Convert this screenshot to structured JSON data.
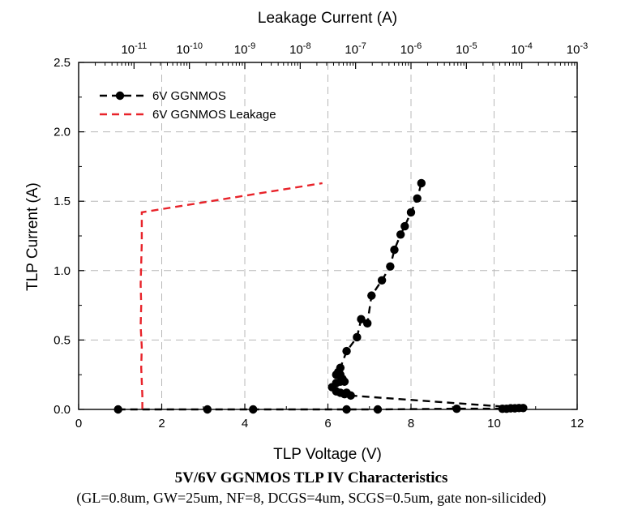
{
  "chart_data": {
    "type": "scatter",
    "title": "5V/6V GGNMOS TLP IV Characteristics",
    "subtitle": "(GL=0.8um, GW=25um, NF=8, DCGS=4um, SCGS=0.5um, gate non-silicided)",
    "xlabel": "TLP Voltage (V)",
    "ylabel": "TLP Current (A)",
    "top_xlabel": "Leakage Current (A)",
    "xlim": [
      0,
      12
    ],
    "ylim": [
      0,
      2.5
    ],
    "top_xlim_log10": [
      -12,
      -3
    ],
    "grid": true,
    "legend_position": "top-left",
    "x_ticks": [
      "0",
      "2",
      "4",
      "6",
      "8",
      "10",
      "12"
    ],
    "y_ticks": [
      "0.0",
      "0.5",
      "1.0",
      "1.5",
      "2.0",
      "2.5"
    ],
    "top_ticks": [
      {
        "base": "10",
        "exp": "-11"
      },
      {
        "base": "10",
        "exp": "-10"
      },
      {
        "base": "10",
        "exp": "-9"
      },
      {
        "base": "10",
        "exp": "-8"
      },
      {
        "base": "10",
        "exp": "-7"
      },
      {
        "base": "10",
        "exp": "-6"
      },
      {
        "base": "10",
        "exp": "-5"
      },
      {
        "base": "10",
        "exp": "-4"
      },
      {
        "base": "10",
        "exp": "-3"
      }
    ],
    "series": [
      {
        "name": "6V GGNMOS",
        "color": "#000000",
        "style": "dashed-with-markers",
        "x": [
          0.95,
          3.1,
          4.2,
          6.45,
          7.2,
          9.1,
          10.2,
          10.3,
          10.4,
          10.5,
          10.6,
          10.7,
          6.55,
          6.4,
          6.3,
          6.45,
          6.2,
          6.1,
          6.2,
          6.3,
          6.4,
          6.35,
          6.3,
          6.2,
          6.25,
          6.3,
          6.45,
          6.7,
          6.8,
          6.95,
          7.05,
          7.3,
          7.5,
          7.6,
          7.75,
          7.85,
          8.0,
          8.15,
          8.25
        ],
        "y": [
          0.0,
          0.0,
          0.0,
          0.0,
          0.0,
          0.005,
          0.005,
          0.005,
          0.008,
          0.008,
          0.01,
          0.01,
          0.1,
          0.11,
          0.12,
          0.12,
          0.13,
          0.16,
          0.19,
          0.2,
          0.2,
          0.22,
          0.25,
          0.25,
          0.27,
          0.3,
          0.42,
          0.52,
          0.65,
          0.62,
          0.82,
          0.93,
          1.03,
          1.15,
          1.26,
          1.32,
          1.42,
          1.52,
          1.63
        ]
      },
      {
        "name": "6V GGNMOS Leakage",
        "color": "#e8232a",
        "style": "dashed",
        "log10_leakage": [
          -10.85,
          -10.85,
          -10.86,
          -10.87,
          -10.86,
          -10.88,
          -10.87,
          -10.88,
          -10.87,
          -10.86,
          -10.86,
          -7.6
        ],
        "y": [
          0.0,
          0.1,
          0.2,
          0.3,
          0.45,
          0.6,
          0.75,
          0.9,
          1.05,
          1.2,
          1.42,
          1.63
        ]
      }
    ]
  }
}
